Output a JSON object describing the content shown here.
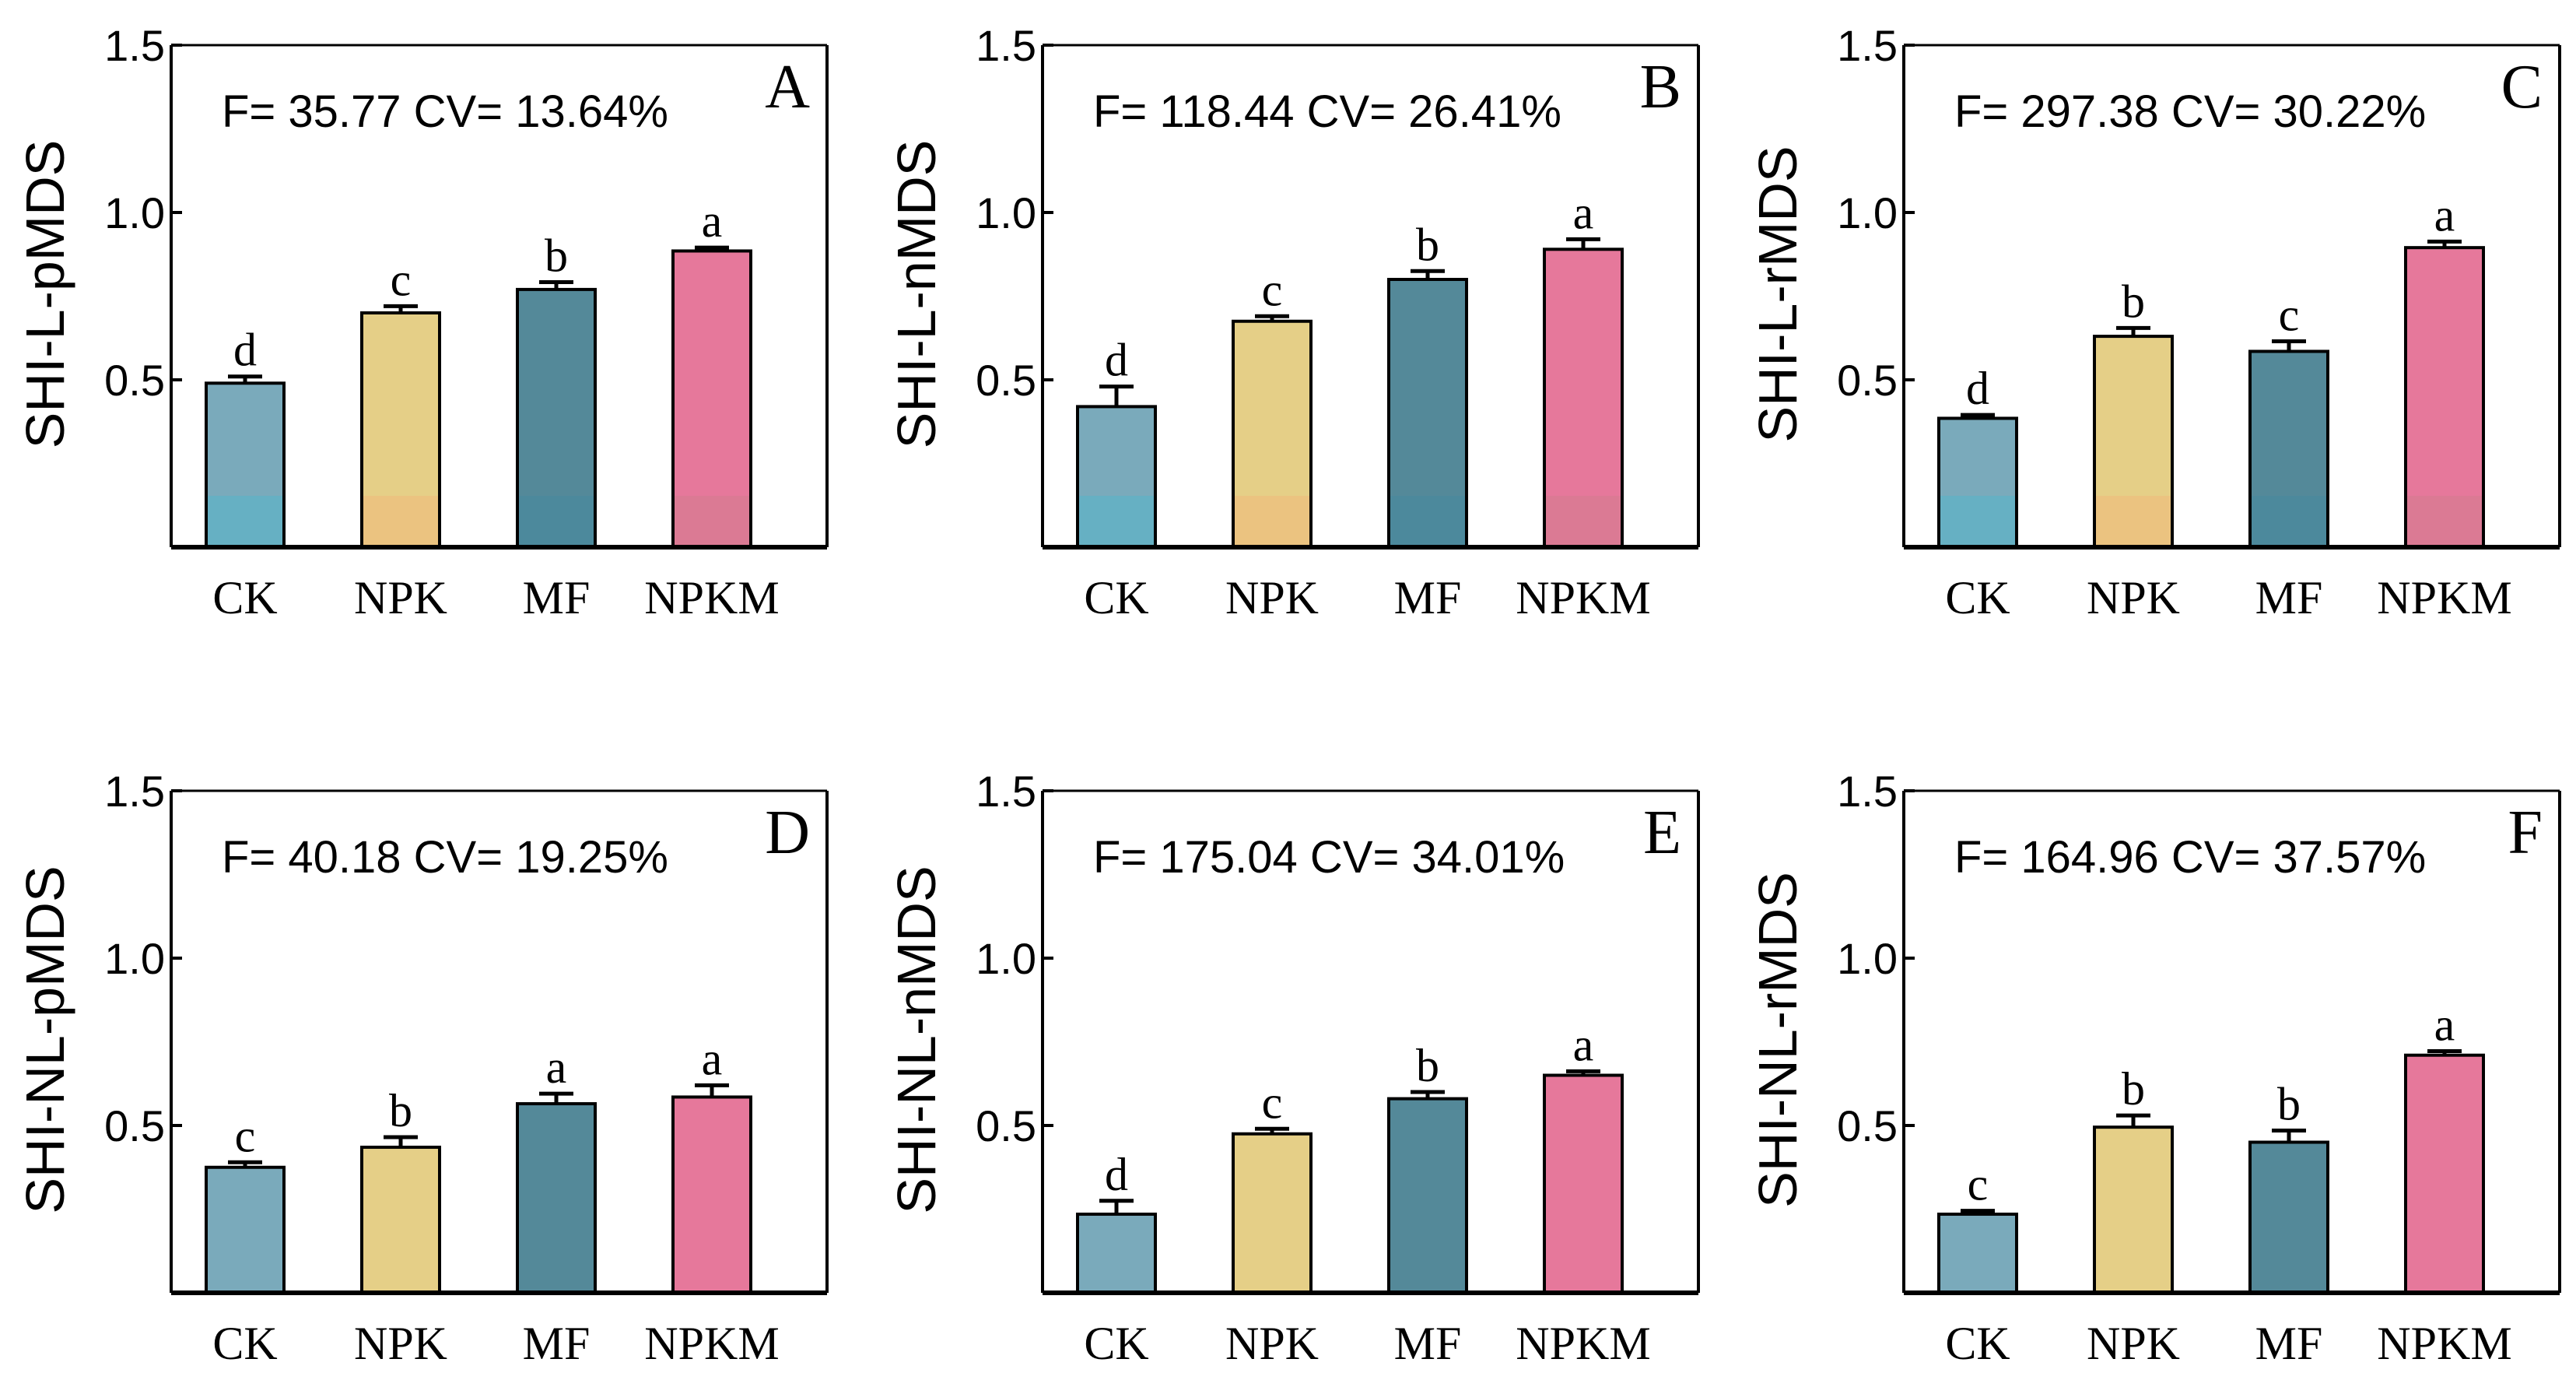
{
  "colors": {
    "bars": [
      "#7aaabb",
      "#e5cf87",
      "#548999",
      "#e6789b"
    ],
    "bar_bottom": [
      "#63b2c4",
      "#ecc17f",
      "#4b8a9c",
      "#d87a93"
    ],
    "outline": "#000000"
  },
  "chart_data": [
    {
      "type": "bar",
      "panel": "A",
      "categories": [
        "CK",
        "NPK",
        "MF",
        "NPKM"
      ],
      "values": [
        0.49,
        0.7,
        0.77,
        0.885
      ],
      "errors": [
        0.02,
        0.02,
        0.022,
        0.01
      ],
      "letters": [
        "d",
        "c",
        "b",
        "a"
      ],
      "annotation": "F= 35.77  CV= 13.64%",
      "ylabel": "SHI-L-pMDS",
      "ylim": [
        0,
        1.5
      ],
      "yticks": [
        0.5,
        1.0,
        1.5
      ],
      "ytick_labels": [
        "0.5",
        "1.0",
        "1.5"
      ]
    },
    {
      "type": "bar",
      "panel": "B",
      "categories": [
        "CK",
        "NPK",
        "MF",
        "NPKM"
      ],
      "values": [
        0.42,
        0.675,
        0.8,
        0.89
      ],
      "errors": [
        0.06,
        0.015,
        0.025,
        0.03
      ],
      "letters": [
        "d",
        "c",
        "b",
        "a"
      ],
      "annotation": "F= 118.44  CV= 26.41%",
      "ylabel": "SHI-L-nMDS",
      "ylim": [
        0,
        1.5
      ],
      "yticks": [
        0.5,
        1.0,
        1.5
      ],
      "ytick_labels": [
        "0.5",
        "1.0",
        "1.5"
      ]
    },
    {
      "type": "bar",
      "panel": "C",
      "categories": [
        "CK",
        "NPK",
        "MF",
        "NPKM"
      ],
      "values": [
        0.385,
        0.63,
        0.585,
        0.895
      ],
      "errors": [
        0.01,
        0.025,
        0.03,
        0.018
      ],
      "letters": [
        "d",
        "b",
        "c",
        "a"
      ],
      "annotation": "F= 297.38  CV= 30.22%",
      "ylabel": "SHI-L-rMDS",
      "ylim": [
        0,
        1.5
      ],
      "yticks": [
        0.5,
        1.0,
        1.5
      ],
      "ytick_labels": [
        "0.5",
        "1.0",
        "1.5"
      ]
    },
    {
      "type": "bar",
      "panel": "D",
      "categories": [
        "CK",
        "NPK",
        "MF",
        "NPKM"
      ],
      "values": [
        0.375,
        0.435,
        0.565,
        0.585
      ],
      "errors": [
        0.015,
        0.03,
        0.03,
        0.035
      ],
      "letters": [
        "c",
        "b",
        "a",
        "a"
      ],
      "annotation": "F= 40.18  CV= 19.25%",
      "ylabel": "SHI-NL-pMDS",
      "ylim": [
        0,
        1.5
      ],
      "yticks": [
        0.5,
        1.0,
        1.5
      ],
      "ytick_labels": [
        "0.5",
        "1.0",
        "1.5"
      ]
    },
    {
      "type": "bar",
      "panel": "E",
      "categories": [
        "CK",
        "NPK",
        "MF",
        "NPKM"
      ],
      "values": [
        0.235,
        0.475,
        0.58,
        0.65
      ],
      "errors": [
        0.04,
        0.015,
        0.02,
        0.012
      ],
      "letters": [
        "d",
        "c",
        "b",
        "a"
      ],
      "annotation": "F= 175.04  CV= 34.01%",
      "ylabel": "SHI-NL-nMDS",
      "ylim": [
        0,
        1.5
      ],
      "yticks": [
        0.5,
        1.0,
        1.5
      ],
      "ytick_labels": [
        "0.5",
        "1.0",
        "1.5"
      ]
    },
    {
      "type": "bar",
      "panel": "F",
      "categories": [
        "CK",
        "NPK",
        "MF",
        "NPKM"
      ],
      "values": [
        0.235,
        0.495,
        0.45,
        0.71
      ],
      "errors": [
        0.01,
        0.035,
        0.035,
        0.012
      ],
      "letters": [
        "c",
        "b",
        "b",
        "a"
      ],
      "annotation": "F= 164.96  CV= 37.57%",
      "ylabel": "SHI-NL-rMDS",
      "ylim": [
        0,
        1.5
      ],
      "yticks": [
        0.5,
        1.0,
        1.5
      ],
      "ytick_labels": [
        "0.5",
        "1.0",
        "1.5"
      ]
    }
  ]
}
